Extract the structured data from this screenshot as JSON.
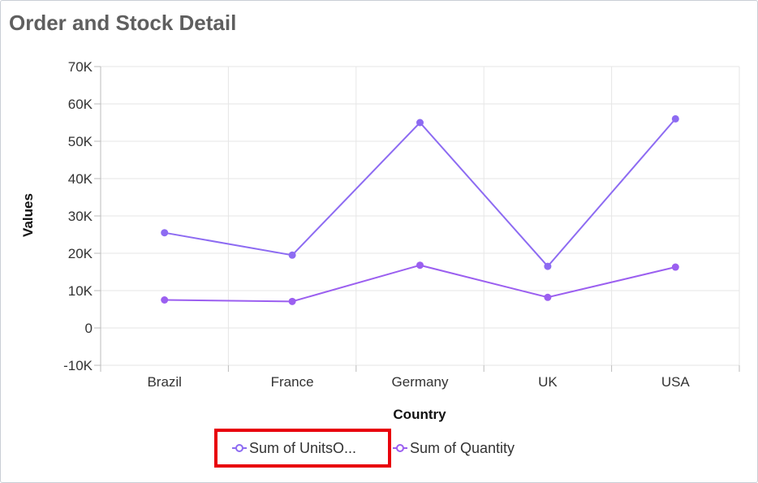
{
  "title": "Order and Stock Detail",
  "chart_data": {
    "type": "line",
    "categories": [
      "Brazil",
      "France",
      "Germany",
      "UK",
      "USA"
    ],
    "xlabel": "Country",
    "ylabel": "Values",
    "ylim": [
      -10000,
      70000
    ],
    "ytick_step": 10000,
    "ytick_labels": [
      "-10K",
      "0",
      "10K",
      "20K",
      "30K",
      "40K",
      "50K",
      "60K",
      "70K"
    ],
    "grid": true,
    "legend_placement": "bottom-center",
    "series": [
      {
        "name": "Sum of UnitsO...",
        "color": "#8d6bf2",
        "values": [
          25500,
          19500,
          55000,
          16500,
          56000
        ]
      },
      {
        "name": "Sum of Quantity",
        "color": "#9b5ff0",
        "values": [
          7500,
          7100,
          16800,
          8200,
          16300
        ]
      }
    ],
    "highlight": {
      "target": "legend-item-0",
      "color": "#e8000b"
    }
  }
}
